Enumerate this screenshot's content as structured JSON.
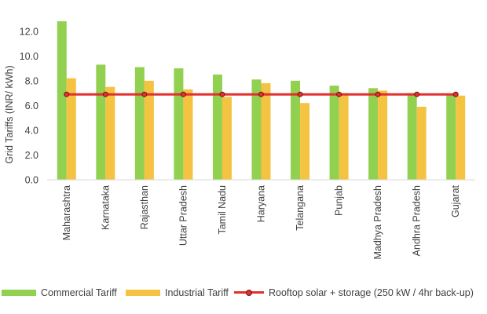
{
  "chart_data": {
    "type": "bar",
    "ylabel": "Grid Tariffs (INR/ kWh)",
    "ylim": [
      0,
      13
    ],
    "yticks": [
      0,
      2,
      4,
      6,
      8,
      10,
      12
    ],
    "ytick_labels": [
      "0.0",
      "2.0",
      "4.0",
      "6.0",
      "8.0",
      "10.0",
      "12.0"
    ],
    "grid": false,
    "legend_position": "bottom",
    "categories": [
      "Maharashtra",
      "Karnataka",
      "Rajasthan",
      "Uttar Pradesh",
      "Tamil Nadu",
      "Haryana",
      "Telangana",
      "Punjab",
      "Madhya Pradesh",
      "Andhra Pradesh",
      "Gujarat"
    ],
    "series": [
      {
        "name": "Commercial Tariff",
        "type": "bar",
        "color": "#92d050",
        "values": [
          12.8,
          9.3,
          9.1,
          9.0,
          8.5,
          8.1,
          8.0,
          7.6,
          7.4,
          7.0,
          6.9
        ]
      },
      {
        "name": "Industrial Tariff",
        "type": "bar",
        "color": "#f5c342",
        "values": [
          8.2,
          7.5,
          8.0,
          7.3,
          6.7,
          7.8,
          6.2,
          7.0,
          7.2,
          5.9,
          6.8
        ]
      },
      {
        "name": "Rooftop solar + storage (250 kW / 4hr back-up)",
        "type": "line",
        "color": "#e03030",
        "values": [
          6.9,
          6.9,
          6.9,
          6.9,
          6.9,
          6.9,
          6.9,
          6.9,
          6.9,
          6.9,
          6.9
        ]
      }
    ]
  }
}
